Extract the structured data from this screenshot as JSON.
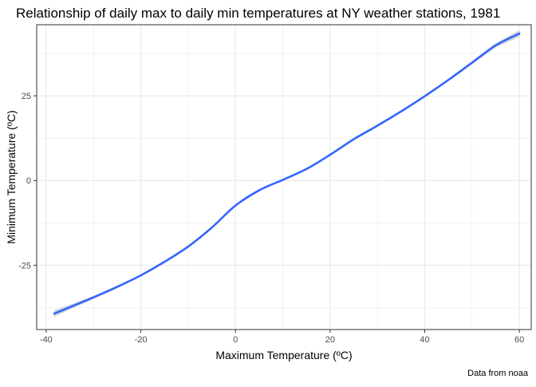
{
  "chart_data": {
    "type": "line",
    "title": "Relationship of daily max to daily min temperatures at NY weather stations, 1981",
    "xlabel": "Maximum Temperature (ºC)",
    "ylabel": "Minimum Temperature (ºC)",
    "caption": "Data from noaa",
    "xlim": [
      -42,
      62.5
    ],
    "ylim": [
      -44,
      46
    ],
    "x_ticks": [
      -40,
      -20,
      0,
      20,
      40,
      60
    ],
    "x_tick_labels": [
      "-40",
      "-20",
      "0",
      "20",
      "40",
      "60"
    ],
    "y_ticks": [
      -25,
      0,
      25
    ],
    "y_tick_labels": [
      "-25",
      "0",
      "25"
    ],
    "grid": true,
    "confidence_band": true,
    "colors": {
      "line": "#3366FF",
      "band": "#cfcfcf",
      "grid": "#ebebeb",
      "panel_border": "#333333"
    },
    "series": [
      {
        "x": [
          -38.3,
          -35,
          -30,
          -25,
          -20,
          -15,
          -10,
          -5,
          0,
          5,
          10,
          15,
          20,
          25,
          30,
          35,
          40,
          45,
          50,
          55,
          60
        ],
        "values": [
          -39.3,
          -37.4,
          -34.5,
          -31.4,
          -28,
          -24,
          -19.5,
          -13.9,
          -7.4,
          -2.9,
          0.2,
          3.4,
          7.6,
          12.2,
          16.2,
          20.4,
          24.9,
          29.7,
          34.8,
          39.9,
          43.4
        ],
        "band_half_width": [
          1.0,
          0.7,
          0.45,
          0.35,
          0.3,
          0.25,
          0.2,
          0.2,
          0.2,
          0.2,
          0.2,
          0.2,
          0.2,
          0.2,
          0.2,
          0.2,
          0.2,
          0.3,
          0.45,
          0.65,
          1.0
        ]
      }
    ]
  }
}
